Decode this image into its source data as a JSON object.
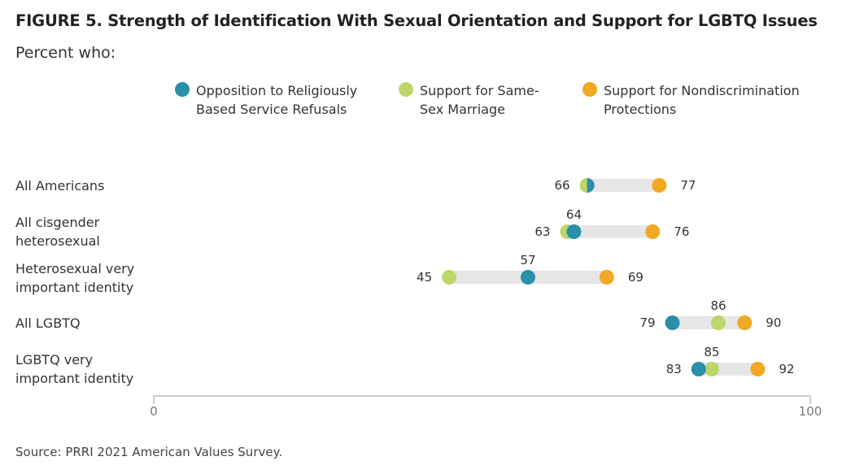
{
  "chart_data": {
    "type": "dot",
    "title": "FIGURE 5.  Strength of Identification With Sexual Orientation and Support for LGBTQ Issues",
    "subtitle": "Percent who:",
    "categories": [
      "All Americans",
      "All cisgender heterosexual",
      "Heterosexual very important identity",
      "All LGBTQ",
      "LGBTQ very important identity"
    ],
    "series": [
      {
        "name": "Opposition to Religiously Based Service Refusals",
        "color": "#2a8fa8",
        "values": [
          66,
          64,
          57,
          79,
          83
        ]
      },
      {
        "name": "Support for Same-Sex Marriage",
        "color": "#bcd66a",
        "values": [
          66,
          63,
          45,
          86,
          85
        ]
      },
      {
        "name": "Support for Nondiscrimination Protections",
        "color": "#f2a823",
        "values": [
          77,
          76,
          69,
          90,
          92
        ]
      }
    ],
    "xlim": [
      0,
      100
    ],
    "xticks": [
      "0",
      "100"
    ],
    "grid": false,
    "legend_position": "top"
  },
  "legend": [
    {
      "label_line1": "Opposition to Religiously",
      "label_line2": "Based Service Refusals",
      "color": "#2a8fa8"
    },
    {
      "label_line1": "Support for Same-",
      "label_line2": "Sex Marriage",
      "color": "#bcd66a"
    },
    {
      "label_line1": "Support for Nondiscrimination",
      "label_line2": "Protections",
      "color": "#f2a823"
    }
  ],
  "row_labels": [
    {
      "line1": "All Americans",
      "line2": ""
    },
    {
      "line1": "All cisgender",
      "line2": "heterosexual"
    },
    {
      "line1": "Heterosexual very",
      "line2": "important identity"
    },
    {
      "line1": "All LGBTQ",
      "line2": ""
    },
    {
      "line1": "LGBTQ very",
      "line2": "important identity"
    }
  ],
  "source": "Source: PRRI 2021 American Values Survey."
}
